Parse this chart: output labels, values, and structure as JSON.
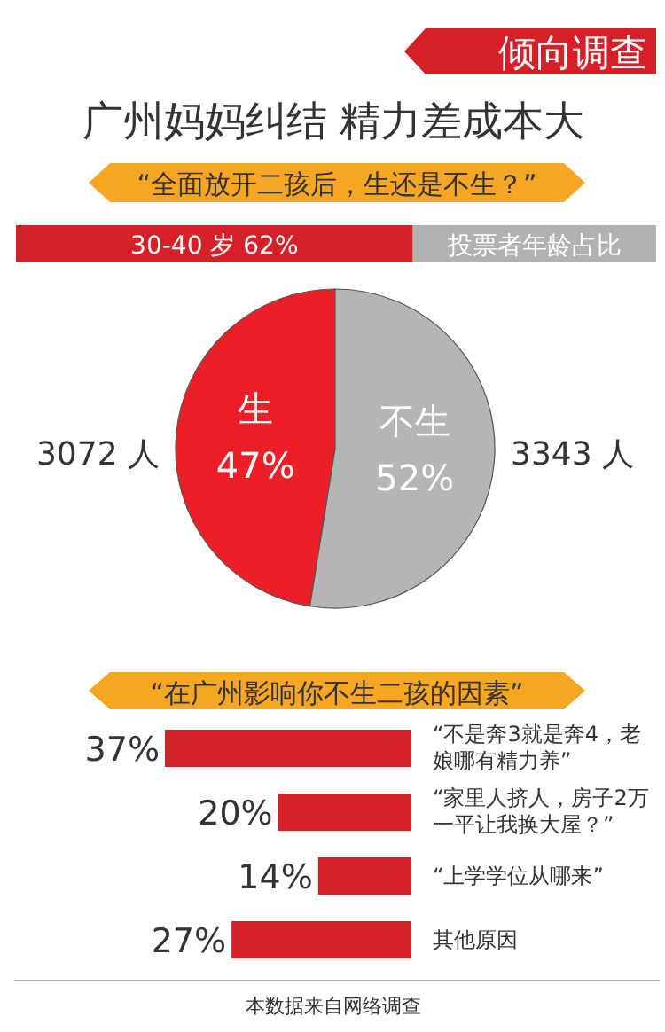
{
  "chart_data": [
    {
      "type": "bar",
      "orientation": "horizontal",
      "stacked": true,
      "title": "广州妈妈纠结  精力差成本大",
      "subtitle": "“全面放开二孩后，生还是不生？”",
      "annotations": [
        "倾向调查"
      ],
      "categories": [
        null
      ],
      "xlim": [
        0,
        100
      ],
      "series": [
        {
          "color": "#d71f27",
          "values": [
            62
          ],
          "value_labels": [
            "30-40 岁 62%"
          ]
        },
        {
          "color": "#b1b1b1",
          "values": [
            38
          ],
          "value_labels": [
            "投票者年龄占比"
          ]
        }
      ]
    },
    {
      "type": "pie",
      "categories": [
        "生",
        "不生"
      ],
      "values": [
        47,
        52
      ],
      "colors": [
        "#ec1f27",
        "#b5b5b5"
      ],
      "value_labels": [
        "47%",
        "52%"
      ],
      "annotations": [
        "3072 人",
        "3343 人"
      ]
    },
    {
      "type": "bar",
      "orientation": "horizontal",
      "title": "“在广州影响你不生二孩的因素”",
      "categories": [
        "“不是奔3就是奔4，老娘哪有精力养”",
        "“家里人挤人，房子2万一平让我换大屋？”",
        "“上学学位从哪来”",
        "其他原因"
      ],
      "values": [
        37,
        20,
        14,
        27
      ],
      "color": "#d71f27",
      "value_labels": [
        "37%",
        "20%",
        "14%",
        "27%"
      ],
      "annotations": [
        "本数据来自网络调查"
      ]
    }
  ]
}
